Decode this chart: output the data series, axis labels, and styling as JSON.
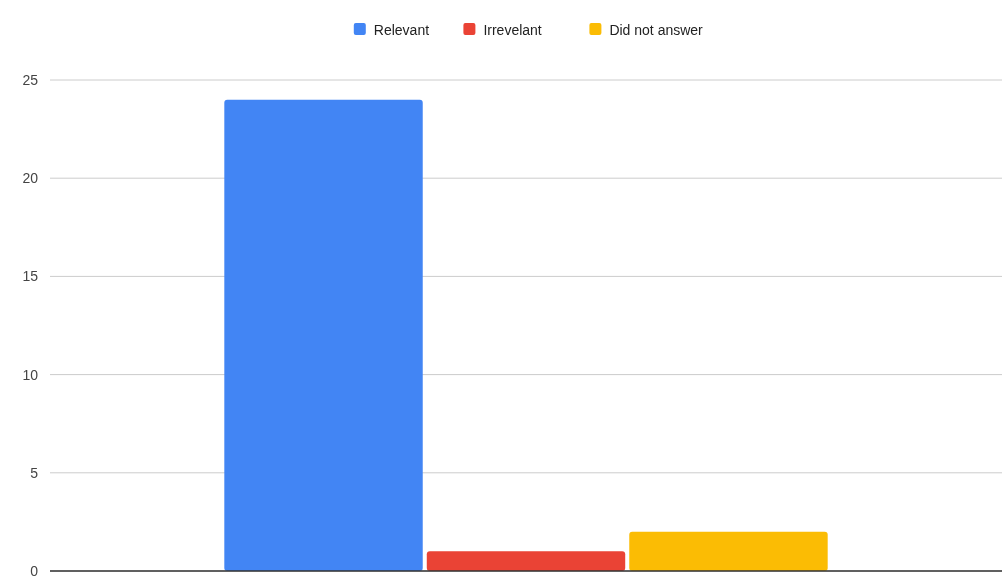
{
  "chart_data": {
    "type": "bar",
    "categories": [
      null
    ],
    "series": [
      {
        "name": "Relevant",
        "color": "#4285f4",
        "values": [
          24
        ]
      },
      {
        "name": "Irrevelant",
        "color": "#ea4335",
        "values": [
          1
        ]
      },
      {
        "name": "Did not answer",
        "color": "#fbbc04",
        "values": [
          2
        ]
      }
    ],
    "ylim": [
      0,
      25
    ],
    "yticks": [
      0,
      5,
      10,
      15,
      20,
      25
    ],
    "grid": "y",
    "legend": "top"
  }
}
